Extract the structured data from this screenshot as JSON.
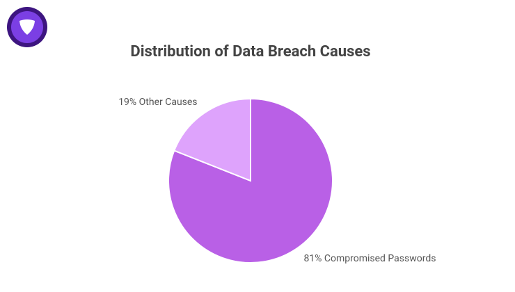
{
  "chart_data": {
    "type": "pie",
    "title": "Distribution of Data Breach Causes",
    "values": [
      81,
      19
    ],
    "value_labels": [
      "81% Compromised Passwords",
      "19% Other Causes"
    ],
    "colors": [
      "#b960e6",
      "#dea3fc"
    ]
  }
}
